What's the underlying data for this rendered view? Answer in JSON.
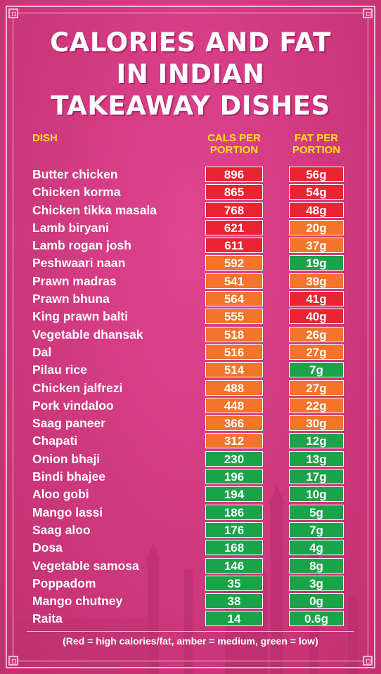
{
  "title_lines": [
    "CALORIES AND FAT",
    "IN INDIAN",
    "TAKEAWAY DISHES"
  ],
  "headers": {
    "dish": "DISH",
    "cals": [
      "CALS PER",
      "PORTION"
    ],
    "fat": [
      "FAT PER",
      "PORTION"
    ]
  },
  "colors": {
    "red": "#ea2430",
    "amber": "#f3742a",
    "green": "#1ba34a"
  },
  "rows": [
    {
      "dish": "Butter chicken",
      "cals": "896",
      "cals_level": "red",
      "fat": "56g",
      "fat_level": "red"
    },
    {
      "dish": "Chicken korma",
      "cals": "865",
      "cals_level": "red",
      "fat": "54g",
      "fat_level": "red"
    },
    {
      "dish": "Chicken tikka masala",
      "cals": "768",
      "cals_level": "red",
      "fat": "48g",
      "fat_level": "red"
    },
    {
      "dish": "Lamb biryani",
      "cals": "621",
      "cals_level": "red",
      "fat": "20g",
      "fat_level": "amber"
    },
    {
      "dish": "Lamb rogan josh",
      "cals": "611",
      "cals_level": "red",
      "fat": "37g",
      "fat_level": "amber"
    },
    {
      "dish": "Peshwaari naan",
      "cals": "592",
      "cals_level": "amber",
      "fat": "19g",
      "fat_level": "green"
    },
    {
      "dish": "Prawn madras",
      "cals": "541",
      "cals_level": "amber",
      "fat": "39g",
      "fat_level": "amber"
    },
    {
      "dish": "Prawn bhuna",
      "cals": "564",
      "cals_level": "amber",
      "fat": "41g",
      "fat_level": "red"
    },
    {
      "dish": "King prawn balti",
      "cals": "555",
      "cals_level": "amber",
      "fat": "40g",
      "fat_level": "red"
    },
    {
      "dish": "Vegetable dhansak",
      "cals": "518",
      "cals_level": "amber",
      "fat": "26g",
      "fat_level": "amber"
    },
    {
      "dish": "Dal",
      "cals": "516",
      "cals_level": "amber",
      "fat": "27g",
      "fat_level": "amber"
    },
    {
      "dish": "Pilau rice",
      "cals": "514",
      "cals_level": "amber",
      "fat": "7g",
      "fat_level": "green"
    },
    {
      "dish": "Chicken jalfrezi",
      "cals": "488",
      "cals_level": "amber",
      "fat": "27g",
      "fat_level": "amber"
    },
    {
      "dish": "Pork vindaloo",
      "cals": "448",
      "cals_level": "amber",
      "fat": "22g",
      "fat_level": "amber"
    },
    {
      "dish": "Saag paneer",
      "cals": "366",
      "cals_level": "amber",
      "fat": "30g",
      "fat_level": "amber"
    },
    {
      "dish": "Chapati",
      "cals": "312",
      "cals_level": "amber",
      "fat": "12g",
      "fat_level": "green"
    },
    {
      "dish": "Onion bhaji",
      "cals": "230",
      "cals_level": "green",
      "fat": "13g",
      "fat_level": "green"
    },
    {
      "dish": "Bindi bhajee",
      "cals": "196",
      "cals_level": "green",
      "fat": "17g",
      "fat_level": "green"
    },
    {
      "dish": "Aloo gobi",
      "cals": "194",
      "cals_level": "green",
      "fat": "10g",
      "fat_level": "green"
    },
    {
      "dish": "Mango lassi",
      "cals": "186",
      "cals_level": "green",
      "fat": "5g",
      "fat_level": "green"
    },
    {
      "dish": "Saag aloo",
      "cals": "176",
      "cals_level": "green",
      "fat": "7g",
      "fat_level": "green"
    },
    {
      "dish": "Dosa",
      "cals": "168",
      "cals_level": "green",
      "fat": "4g",
      "fat_level": "green"
    },
    {
      "dish": "Vegetable samosa",
      "cals": "146",
      "cals_level": "green",
      "fat": "8g",
      "fat_level": "green"
    },
    {
      "dish": "Poppadom",
      "cals": "35",
      "cals_level": "green",
      "fat": "3g",
      "fat_level": "green"
    },
    {
      "dish": "Mango chutney",
      "cals": "38",
      "cals_level": "green",
      "fat": "0g",
      "fat_level": "green"
    },
    {
      "dish": "Raita",
      "cals": "14",
      "cals_level": "green",
      "fat": "0.6g",
      "fat_level": "green"
    }
  ],
  "footnote": "(Red = high calories/fat, amber = medium, green = low)"
}
